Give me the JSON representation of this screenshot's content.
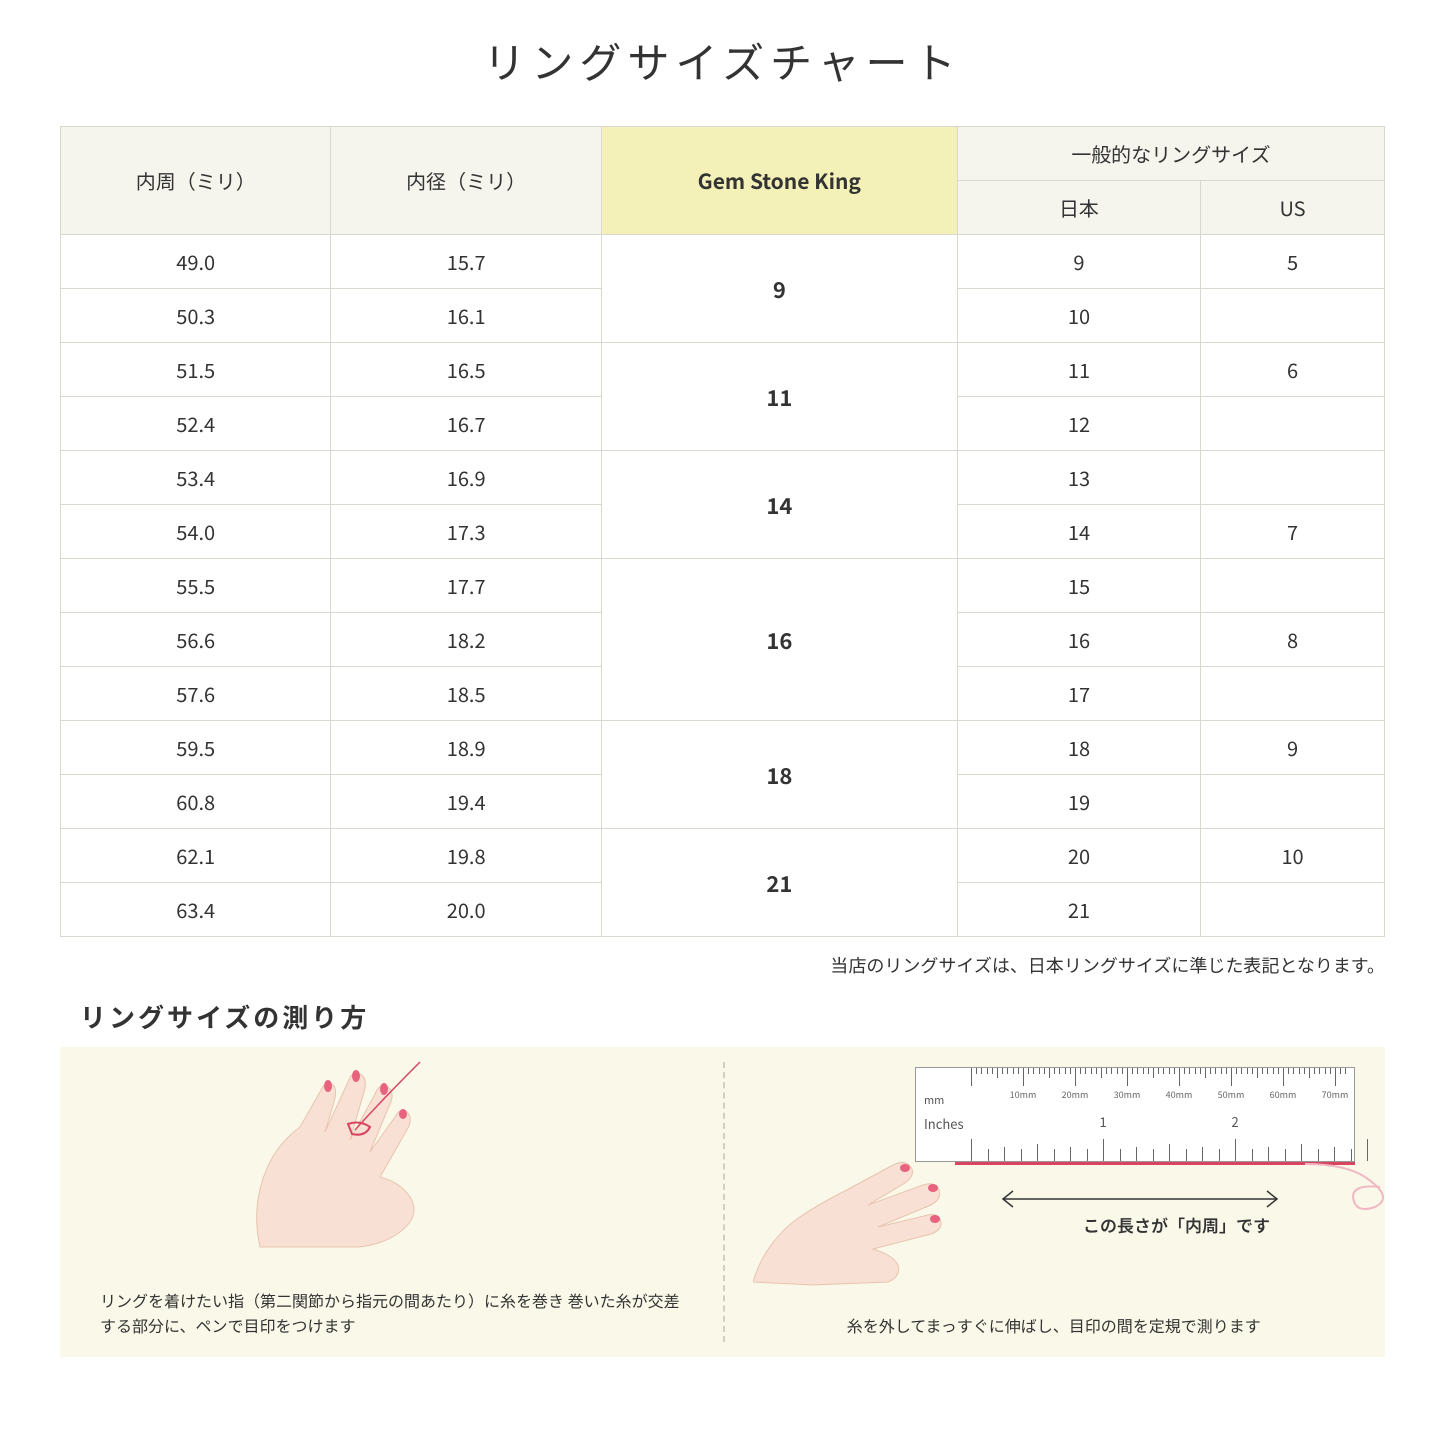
{
  "title": "リングサイズチャート",
  "headers": {
    "circumference": "内周（ミリ）",
    "diameter": "内径（ミリ）",
    "gsk": "Gem Stone King",
    "general": "一般的なリングサイズ",
    "japan": "日本",
    "us": "US"
  },
  "groups": [
    {
      "gsk": "9",
      "rows": [
        {
          "c": "49.0",
          "d": "15.7",
          "jp": "9",
          "us": "5"
        },
        {
          "c": "50.3",
          "d": "16.1",
          "jp": "10",
          "us": ""
        }
      ]
    },
    {
      "gsk": "11",
      "rows": [
        {
          "c": "51.5",
          "d": "16.5",
          "jp": "11",
          "us": "6"
        },
        {
          "c": "52.4",
          "d": "16.7",
          "jp": "12",
          "us": ""
        }
      ]
    },
    {
      "gsk": "14",
      "rows": [
        {
          "c": "53.4",
          "d": "16.9",
          "jp": "13",
          "us": ""
        },
        {
          "c": "54.0",
          "d": "17.3",
          "jp": "14",
          "us": "7"
        }
      ]
    },
    {
      "gsk": "16",
      "rows": [
        {
          "c": "55.5",
          "d": "17.7",
          "jp": "15",
          "us": ""
        },
        {
          "c": "56.6",
          "d": "18.2",
          "jp": "16",
          "us": "8"
        },
        {
          "c": "57.6",
          "d": "18.5",
          "jp": "17",
          "us": ""
        }
      ]
    },
    {
      "gsk": "18",
      "rows": [
        {
          "c": "59.5",
          "d": "18.9",
          "jp": "18",
          "us": "9"
        },
        {
          "c": "60.8",
          "d": "19.4",
          "jp": "19",
          "us": ""
        }
      ]
    },
    {
      "gsk": "21",
      "rows": [
        {
          "c": "62.1",
          "d": "19.8",
          "jp": "20",
          "us": "10"
        },
        {
          "c": "63.4",
          "d": "20.0",
          "jp": "21",
          "us": ""
        }
      ]
    }
  ],
  "note": "当店のリングサイズは、日本リングサイズに準じた表記となります。",
  "subheading": "リングサイズの測り方",
  "instruction_left": "リングを着けたい指（第二関節から指元の間あたり）に糸を巻き\n巻いた糸が交差する部分に、ペンで目印をつけます",
  "instruction_right": "糸を外してまっすぐに伸ばし、目印の間を定規で測ります",
  "arrow_label": "この長さが「内周」です",
  "ruler": {
    "mm_label": "mm",
    "inches_label": "Inches",
    "mm_marks": [
      "10mm",
      "20mm",
      "30mm",
      "40mm",
      "50mm",
      "60mm",
      "70mm"
    ],
    "inch_marks": [
      "1",
      "2"
    ]
  },
  "colors": {
    "header_bg": "#f5f5ed",
    "highlight_bg": "#f3f0b8",
    "border": "#d8d8d0",
    "instruction_bg": "#faf8e8",
    "skin": "#f9e0d4",
    "nail": "#e8637e",
    "thread": "#d94560"
  }
}
